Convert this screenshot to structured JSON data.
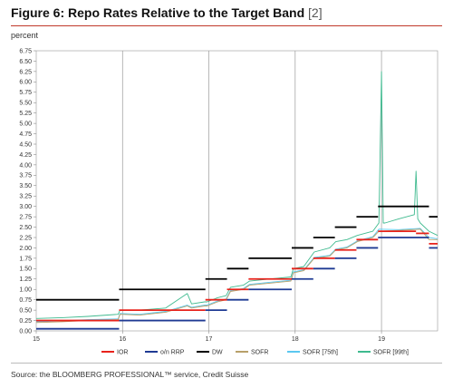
{
  "header": {
    "title": "Figure 6: Repo Rates Relative to the Target Band",
    "title_suffix": "[2]",
    "unit": "percent"
  },
  "footer": {
    "source": "Source: the BLOOMBERG PROFESSIONAL™ service, Credit Suisse"
  },
  "chart_data": {
    "type": "line",
    "title": "Figure 6: Repo Rates Relative to the Target Band [2]",
    "ylabel": "percent",
    "xlabel": "",
    "xlim": [
      15,
      19.65
    ],
    "ylim": [
      0,
      6.75
    ],
    "ytick_step": 0.25,
    "x_ticks": [
      "15",
      "16",
      "17",
      "18",
      "19"
    ],
    "grid": "vertical lines at year boundaries",
    "legend_position": "bottom",
    "colors": {
      "IOR": "#e8221b",
      "o/n RRP": "#1f3a93",
      "DW": "#000000",
      "SOFR": "#b8a06a",
      "SOFR [75th]": "#5bc8f0",
      "SOFR [99th]": "#3fba8f"
    },
    "series": [
      {
        "name": "IOR",
        "steps": [
          {
            "x": [
              15.0,
              15.96
            ],
            "y": 0.25
          },
          {
            "x": [
              15.96,
              16.96
            ],
            "y": 0.5
          },
          {
            "x": [
              16.96,
              17.21
            ],
            "y": 0.75
          },
          {
            "x": [
              17.21,
              17.46
            ],
            "y": 1.0
          },
          {
            "x": [
              17.46,
              17.96
            ],
            "y": 1.25
          },
          {
            "x": [
              17.96,
              18.21
            ],
            "y": 1.5
          },
          {
            "x": [
              18.21,
              18.46
            ],
            "y": 1.75
          },
          {
            "x": [
              18.46,
              18.71
            ],
            "y": 1.95
          },
          {
            "x": [
              18.71,
              18.96
            ],
            "y": 2.2
          },
          {
            "x": [
              18.96,
              19.4
            ],
            "y": 2.4
          },
          {
            "x": [
              19.4,
              19.55
            ],
            "y": 2.35
          },
          {
            "x": [
              19.55,
              19.65
            ],
            "y": 2.1
          }
        ]
      },
      {
        "name": "o/n RRP",
        "steps": [
          {
            "x": [
              15.0,
              15.96
            ],
            "y": 0.05
          },
          {
            "x": [
              15.96,
              16.96
            ],
            "y": 0.25
          },
          {
            "x": [
              16.96,
              17.21
            ],
            "y": 0.5
          },
          {
            "x": [
              17.21,
              17.46
            ],
            "y": 0.75
          },
          {
            "x": [
              17.46,
              17.96
            ],
            "y": 1.0
          },
          {
            "x": [
              17.96,
              18.21
            ],
            "y": 1.25
          },
          {
            "x": [
              18.21,
              18.46
            ],
            "y": 1.5
          },
          {
            "x": [
              18.46,
              18.71
            ],
            "y": 1.75
          },
          {
            "x": [
              18.71,
              18.96
            ],
            "y": 2.0
          },
          {
            "x": [
              18.96,
              19.55
            ],
            "y": 2.25
          },
          {
            "x": [
              19.55,
              19.65
            ],
            "y": 2.0
          }
        ]
      },
      {
        "name": "DW",
        "steps": [
          {
            "x": [
              15.0,
              15.96
            ],
            "y": 0.75
          },
          {
            "x": [
              15.96,
              16.96
            ],
            "y": 1.0
          },
          {
            "x": [
              16.96,
              17.21
            ],
            "y": 1.25
          },
          {
            "x": [
              17.21,
              17.46
            ],
            "y": 1.5
          },
          {
            "x": [
              17.46,
              17.96
            ],
            "y": 1.75
          },
          {
            "x": [
              17.96,
              18.21
            ],
            "y": 2.0
          },
          {
            "x": [
              18.21,
              18.46
            ],
            "y": 2.25
          },
          {
            "x": [
              18.46,
              18.71
            ],
            "y": 2.5
          },
          {
            "x": [
              18.71,
              18.96
            ],
            "y": 2.75
          },
          {
            "x": [
              18.96,
              19.55
            ],
            "y": 3.0
          },
          {
            "x": [
              19.55,
              19.65
            ],
            "y": 2.75
          }
        ]
      },
      {
        "name": "SOFR",
        "x": [
          15.0,
          15.3,
          15.6,
          15.95,
          15.97,
          16.2,
          16.5,
          16.75,
          16.8,
          16.95,
          16.98,
          17.1,
          17.2,
          17.25,
          17.4,
          17.47,
          17.7,
          17.95,
          17.98,
          18.1,
          18.22,
          18.4,
          18.47,
          18.6,
          18.72,
          18.9,
          18.97,
          19.2,
          19.45,
          19.55,
          19.65
        ],
        "y": [
          0.2,
          0.22,
          0.25,
          0.27,
          0.4,
          0.38,
          0.45,
          0.6,
          0.55,
          0.6,
          0.6,
          0.7,
          0.75,
          0.95,
          1.0,
          1.1,
          1.15,
          1.2,
          1.4,
          1.45,
          1.75,
          1.8,
          1.95,
          2.0,
          2.15,
          2.25,
          2.4,
          2.42,
          2.45,
          2.2,
          2.2
        ]
      },
      {
        "name": "SOFR [75th]",
        "x": [
          15.0,
          15.3,
          15.6,
          15.95,
          15.97,
          16.2,
          16.5,
          16.75,
          16.8,
          16.95,
          16.98,
          17.1,
          17.2,
          17.25,
          17.4,
          17.47,
          17.7,
          17.95,
          17.98,
          18.1,
          18.22,
          18.4,
          18.47,
          18.6,
          18.72,
          18.9,
          18.97,
          19.2,
          19.45,
          19.55,
          19.65
        ],
        "y": [
          0.22,
          0.24,
          0.27,
          0.29,
          0.42,
          0.4,
          0.47,
          0.62,
          0.57,
          0.62,
          0.62,
          0.72,
          0.77,
          0.97,
          1.02,
          1.12,
          1.17,
          1.22,
          1.42,
          1.47,
          1.77,
          1.82,
          1.97,
          2.02,
          2.17,
          2.27,
          2.45,
          2.44,
          2.47,
          2.25,
          2.22
        ]
      },
      {
        "name": "SOFR [99th]",
        "x": [
          15.0,
          15.3,
          15.6,
          15.95,
          15.97,
          16.2,
          16.5,
          16.75,
          16.8,
          16.95,
          16.98,
          17.1,
          17.2,
          17.25,
          17.4,
          17.47,
          17.7,
          17.95,
          17.98,
          18.1,
          18.22,
          18.4,
          18.47,
          18.6,
          18.72,
          18.9,
          18.97,
          19.0,
          19.02,
          19.04,
          19.2,
          19.38,
          19.4,
          19.42,
          19.45,
          19.55,
          19.65
        ],
        "y": [
          0.3,
          0.32,
          0.35,
          0.4,
          0.5,
          0.5,
          0.55,
          0.9,
          0.65,
          0.7,
          0.7,
          0.8,
          0.85,
          1.05,
          1.1,
          1.2,
          1.25,
          1.3,
          1.5,
          1.55,
          1.9,
          2.0,
          2.15,
          2.2,
          2.3,
          2.4,
          2.6,
          6.25,
          2.6,
          2.6,
          2.7,
          2.8,
          3.85,
          2.7,
          2.6,
          2.4,
          2.3
        ]
      }
    ]
  }
}
